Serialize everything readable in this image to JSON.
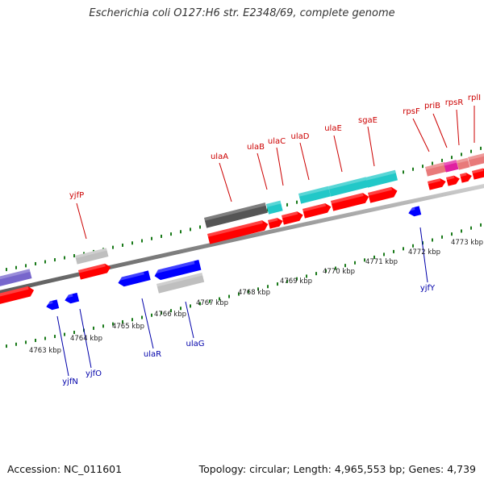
{
  "title": "Escherichia coli O127:H6 str. E2348/69, complete genome",
  "footer": {
    "accession": "Accession: NC_011601",
    "summary": "Topology: circular; Length: 4,965,553 bp; Genes: 4,739"
  },
  "colors": {
    "forward_gene": "#ff0000",
    "reverse_gene": "#0000ff",
    "operon_cyan": "#22c8c8",
    "operon_dark": "#555555",
    "operon_grey": "#bfbfbf",
    "operon_purple": "#7766cc",
    "operon_pink": "#e87a7a",
    "operon_magenta": "#e020a0",
    "forward_label": "#cc0000",
    "reverse_label": "#0000aa",
    "tick": "#1a7a1a",
    "backbone": "#888888"
  },
  "scale_labels": [
    "4763 kbp",
    "4764 kbp",
    "4765 kbp",
    "4766 kbp",
    "4767 kbp",
    "4768 kbp",
    "4769 kbp",
    "4770 kbp",
    "4771 kbp",
    "4772 kbp",
    "4773 kbp"
  ],
  "forward_labels": [
    "yjfP",
    "ulaA",
    "ulaB",
    "ulaC",
    "ulaD",
    "ulaE",
    "sgaE",
    "rpsF",
    "priB",
    "rpsR",
    "rplI"
  ],
  "reverse_labels": [
    "yjfN",
    "yjfO",
    "ulaR",
    "ulaG",
    "yjfY"
  ]
}
